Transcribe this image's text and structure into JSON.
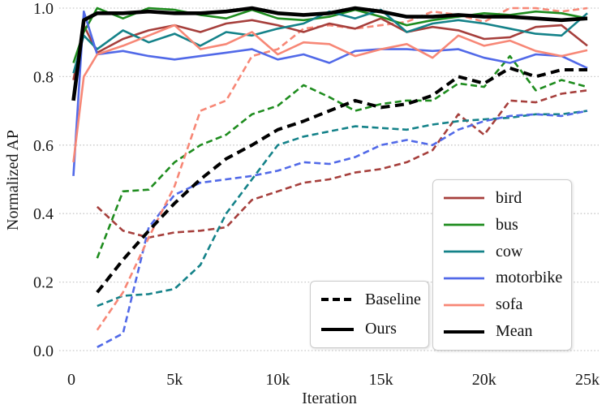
{
  "chart_data": {
    "type": "line",
    "title": "",
    "xlabel": "Iteration",
    "ylabel": "Normalized AP",
    "xlim": [
      0,
      25000
    ],
    "ylim": [
      0.0,
      1.0
    ],
    "grid": "dotted-horizontal",
    "x_ticks": [
      {
        "v": 0,
        "label": "0"
      },
      {
        "v": 5000,
        "label": "5k"
      },
      {
        "v": 10000,
        "label": "10k"
      },
      {
        "v": 15000,
        "label": "15k"
      },
      {
        "v": 20000,
        "label": "20k"
      },
      {
        "v": 25000,
        "label": "25k"
      }
    ],
    "y_ticks": [
      {
        "v": 0.0,
        "label": "0.0"
      },
      {
        "v": 0.2,
        "label": "0.2"
      },
      {
        "v": 0.4,
        "label": "0.4"
      },
      {
        "v": 0.6,
        "label": "0.6"
      },
      {
        "v": 0.8,
        "label": "0.8"
      },
      {
        "v": 1.0,
        "label": "1.0"
      }
    ],
    "x_ours": [
      100,
      600,
      1250,
      2500,
      3750,
      5000,
      6250,
      7500,
      8750,
      10000,
      11250,
      12500,
      13750,
      15000,
      16250,
      17500,
      18750,
      20000,
      21250,
      22500,
      23750,
      25000
    ],
    "x_baseline": [
      1250,
      2500,
      3750,
      5000,
      6250,
      7500,
      8750,
      10000,
      11250,
      12500,
      13750,
      15000,
      16250,
      17500,
      18750,
      20000,
      21250,
      22500,
      23750,
      25000
    ],
    "series": [
      {
        "id": "bird-baseline",
        "category": "bird",
        "variant": "baseline",
        "color": "#a63f3c",
        "dashed": true,
        "y": [
          0.42,
          0.35,
          0.33,
          0.345,
          0.35,
          0.36,
          0.44,
          0.465,
          0.49,
          0.5,
          0.52,
          0.53,
          0.55,
          0.585,
          0.69,
          0.63,
          0.73,
          0.725,
          0.75,
          0.76
        ]
      },
      {
        "id": "bus-baseline",
        "category": "bus",
        "variant": "baseline",
        "color": "#1e8c1e",
        "dashed": true,
        "y": [
          0.27,
          0.465,
          0.47,
          0.55,
          0.6,
          0.63,
          0.69,
          0.715,
          0.775,
          0.74,
          0.7,
          0.72,
          0.73,
          0.73,
          0.78,
          0.77,
          0.86,
          0.76,
          0.79,
          0.77
        ]
      },
      {
        "id": "cow-baseline",
        "category": "cow",
        "variant": "baseline",
        "color": "#148289",
        "dashed": true,
        "y": [
          0.13,
          0.16,
          0.165,
          0.18,
          0.25,
          0.4,
          0.5,
          0.6,
          0.625,
          0.64,
          0.655,
          0.65,
          0.645,
          0.66,
          0.67,
          0.675,
          0.68,
          0.69,
          0.69,
          0.7
        ]
      },
      {
        "id": "motorbike-baseline",
        "category": "motorbike",
        "variant": "baseline",
        "color": "#5169e8",
        "dashed": true,
        "y": [
          0.01,
          0.05,
          0.36,
          0.455,
          0.49,
          0.5,
          0.51,
          0.525,
          0.55,
          0.545,
          0.565,
          0.6,
          0.615,
          0.6,
          0.645,
          0.67,
          0.685,
          0.69,
          0.685,
          0.7
        ]
      },
      {
        "id": "sofa-baseline",
        "category": "sofa",
        "variant": "baseline",
        "color": "#f78776",
        "dashed": true,
        "y": [
          0.06,
          0.17,
          0.33,
          0.48,
          0.7,
          0.73,
          0.86,
          0.88,
          0.94,
          0.95,
          0.94,
          0.95,
          0.96,
          0.99,
          0.98,
          0.96,
          1.0,
          1.0,
          0.99,
          1.0
        ]
      },
      {
        "id": "bird-ours",
        "category": "bird",
        "variant": "ours",
        "color": "#a63f3c",
        "dashed": false,
        "y": [
          0.79,
          0.95,
          0.87,
          0.91,
          0.935,
          0.95,
          0.93,
          0.955,
          0.965,
          0.95,
          0.93,
          0.955,
          0.94,
          0.97,
          0.93,
          0.945,
          0.935,
          0.91,
          0.915,
          0.945,
          0.95,
          0.89
        ]
      },
      {
        "id": "bus-ours",
        "category": "bus",
        "variant": "ours",
        "color": "#1e8c1e",
        "dashed": false,
        "y": [
          0.84,
          0.93,
          1.0,
          0.97,
          1.0,
          0.995,
          0.98,
          0.97,
          0.995,
          0.97,
          0.965,
          0.975,
          0.995,
          0.975,
          0.95,
          0.965,
          0.975,
          0.985,
          0.98,
          0.99,
          0.985,
          0.97
        ]
      },
      {
        "id": "cow-ours",
        "category": "cow",
        "variant": "ours",
        "color": "#148289",
        "dashed": false,
        "y": [
          0.81,
          0.92,
          0.88,
          0.935,
          0.9,
          0.925,
          0.89,
          0.93,
          0.92,
          0.94,
          0.955,
          0.99,
          0.97,
          0.995,
          0.93,
          0.955,
          0.965,
          0.955,
          0.94,
          0.925,
          0.92,
          0.985
        ]
      },
      {
        "id": "motorbike-ours",
        "category": "motorbike",
        "variant": "ours",
        "color": "#5169e8",
        "dashed": false,
        "y": [
          0.51,
          0.99,
          0.865,
          0.875,
          0.86,
          0.85,
          0.86,
          0.87,
          0.88,
          0.85,
          0.865,
          0.84,
          0.875,
          0.88,
          0.88,
          0.875,
          0.88,
          0.855,
          0.84,
          0.865,
          0.86,
          0.825
        ]
      },
      {
        "id": "sofa-ours",
        "category": "sofa",
        "variant": "ours",
        "color": "#f78776",
        "dashed": false,
        "y": [
          0.55,
          0.8,
          0.865,
          0.89,
          0.92,
          0.95,
          0.88,
          0.895,
          0.93,
          0.865,
          0.9,
          0.895,
          0.86,
          0.88,
          0.895,
          0.855,
          0.92,
          0.89,
          0.905,
          0.875,
          0.86,
          0.877
        ]
      },
      {
        "id": "mean-baseline",
        "category": "Mean",
        "variant": "baseline",
        "color": "#000000",
        "dashed": true,
        "y": [
          0.17,
          0.265,
          0.35,
          0.43,
          0.5,
          0.56,
          0.6,
          0.645,
          0.67,
          0.7,
          0.73,
          0.71,
          0.72,
          0.745,
          0.8,
          0.78,
          0.825,
          0.8,
          0.82,
          0.82
        ]
      },
      {
        "id": "mean-ours",
        "category": "Mean",
        "variant": "ours",
        "color": "#000000",
        "dashed": false,
        "y": [
          0.73,
          0.965,
          0.985,
          0.985,
          0.99,
          0.985,
          0.985,
          0.99,
          1.0,
          0.985,
          0.98,
          0.985,
          1.0,
          0.99,
          0.975,
          0.975,
          0.98,
          0.975,
          0.975,
          0.97,
          0.965,
          0.97
        ]
      }
    ],
    "legend_categories": [
      {
        "label": "bird",
        "color": "#a63f3c"
      },
      {
        "label": "bus",
        "color": "#1e8c1e"
      },
      {
        "label": "cow",
        "color": "#148289"
      },
      {
        "label": "motorbike",
        "color": "#5169e8"
      },
      {
        "label": "sofa",
        "color": "#f78776"
      },
      {
        "label": "Mean",
        "color": "#000000"
      }
    ],
    "legend_styles": [
      {
        "label": "Baseline",
        "dashed": true
      },
      {
        "label": "Ours",
        "dashed": false
      }
    ],
    "colors": {
      "grid": "#c9c9c9",
      "text": "#1a1a1a",
      "background": "#ffffff"
    }
  }
}
